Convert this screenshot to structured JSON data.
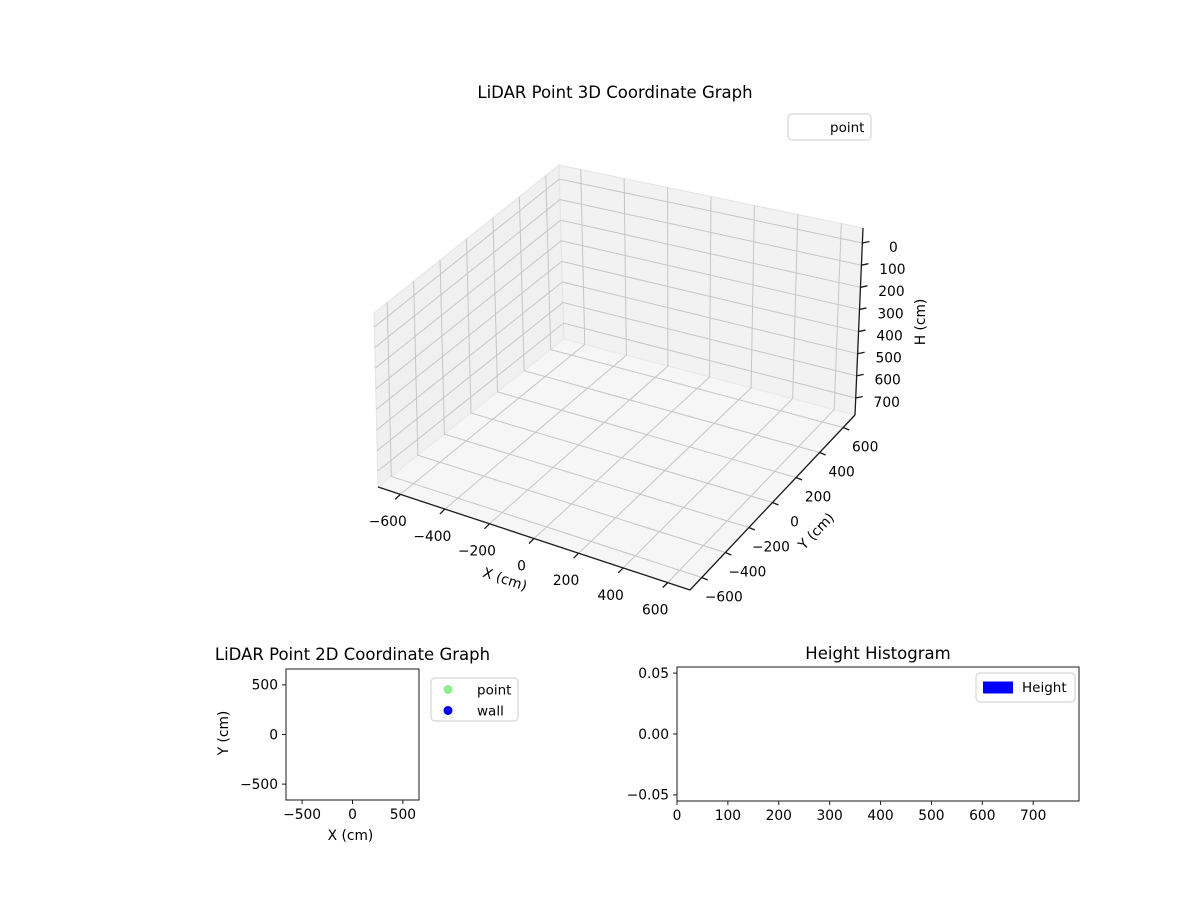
{
  "figure": {
    "background": "#ffffff"
  },
  "chart_data": [
    {
      "id": "lidar-3d",
      "type": "scatter3d",
      "title": "LiDAR Point 3D Coordinate Graph",
      "xlabel": "X (cm)",
      "ylabel": "Y (cm)",
      "zlabel": "H (cm)",
      "xlim": [
        -700,
        700
      ],
      "ylim": [
        -700,
        700
      ],
      "zlim": [
        -68,
        777
      ],
      "zaxis_inverted": true,
      "xticks": [
        -600,
        -400,
        -200,
        0,
        200,
        400,
        600
      ],
      "xtick_labels": [
        "−600",
        "−400",
        "−200",
        "0",
        "200",
        "400",
        "600"
      ],
      "yticks": [
        -600,
        -400,
        -200,
        0,
        200,
        400,
        600
      ],
      "ytick_labels": [
        "−600",
        "−400",
        "−200",
        "0",
        "200",
        "400",
        "600"
      ],
      "zticks": [
        0,
        100,
        200,
        300,
        400,
        500,
        600,
        700
      ],
      "ztick_labels": [
        "0",
        "100",
        "200",
        "300",
        "400",
        "500",
        "600",
        "700"
      ],
      "grid": true,
      "points": [],
      "legend": {
        "position": "upper-right",
        "entries": [
          {
            "label": "point",
            "marker": "none",
            "color": null
          }
        ]
      }
    },
    {
      "id": "lidar-2d",
      "type": "scatter",
      "title": "LiDAR Point 2D Coordinate Graph",
      "xlabel": "X (cm)",
      "ylabel": "Y (cm)",
      "xlim": [
        -660,
        660
      ],
      "ylim": [
        -660,
        660
      ],
      "xticks": [
        -500,
        0,
        500
      ],
      "xtick_labels": [
        "−500",
        "0",
        "500"
      ],
      "yticks": [
        500,
        0,
        -500
      ],
      "ytick_labels": [
        "500",
        "0",
        "−500"
      ],
      "grid": false,
      "points": [],
      "legend": {
        "position": "right-outside",
        "entries": [
          {
            "label": "point",
            "marker": "circle",
            "color": "#90ee90"
          },
          {
            "label": "wall",
            "marker": "circle",
            "color": "#0000ff"
          }
        ]
      }
    },
    {
      "id": "height-histogram",
      "type": "bar",
      "title": "Height Histogram",
      "xlabel": "",
      "ylabel": "",
      "xlim": [
        0,
        790
      ],
      "ylim": [
        -0.055,
        0.055
      ],
      "xticks": [
        0,
        100,
        200,
        300,
        400,
        500,
        600,
        700
      ],
      "xtick_labels": [
        "0",
        "100",
        "200",
        "300",
        "400",
        "500",
        "600",
        "700"
      ],
      "yticks": [
        0.05,
        0.0,
        -0.05
      ],
      "ytick_labels": [
        "0.05",
        "0.00",
        "−0.05"
      ],
      "grid": false,
      "values": [],
      "legend": {
        "position": "upper-right",
        "entries": [
          {
            "label": "Height",
            "marker": "rect",
            "color": "#0000ff"
          }
        ]
      }
    }
  ]
}
